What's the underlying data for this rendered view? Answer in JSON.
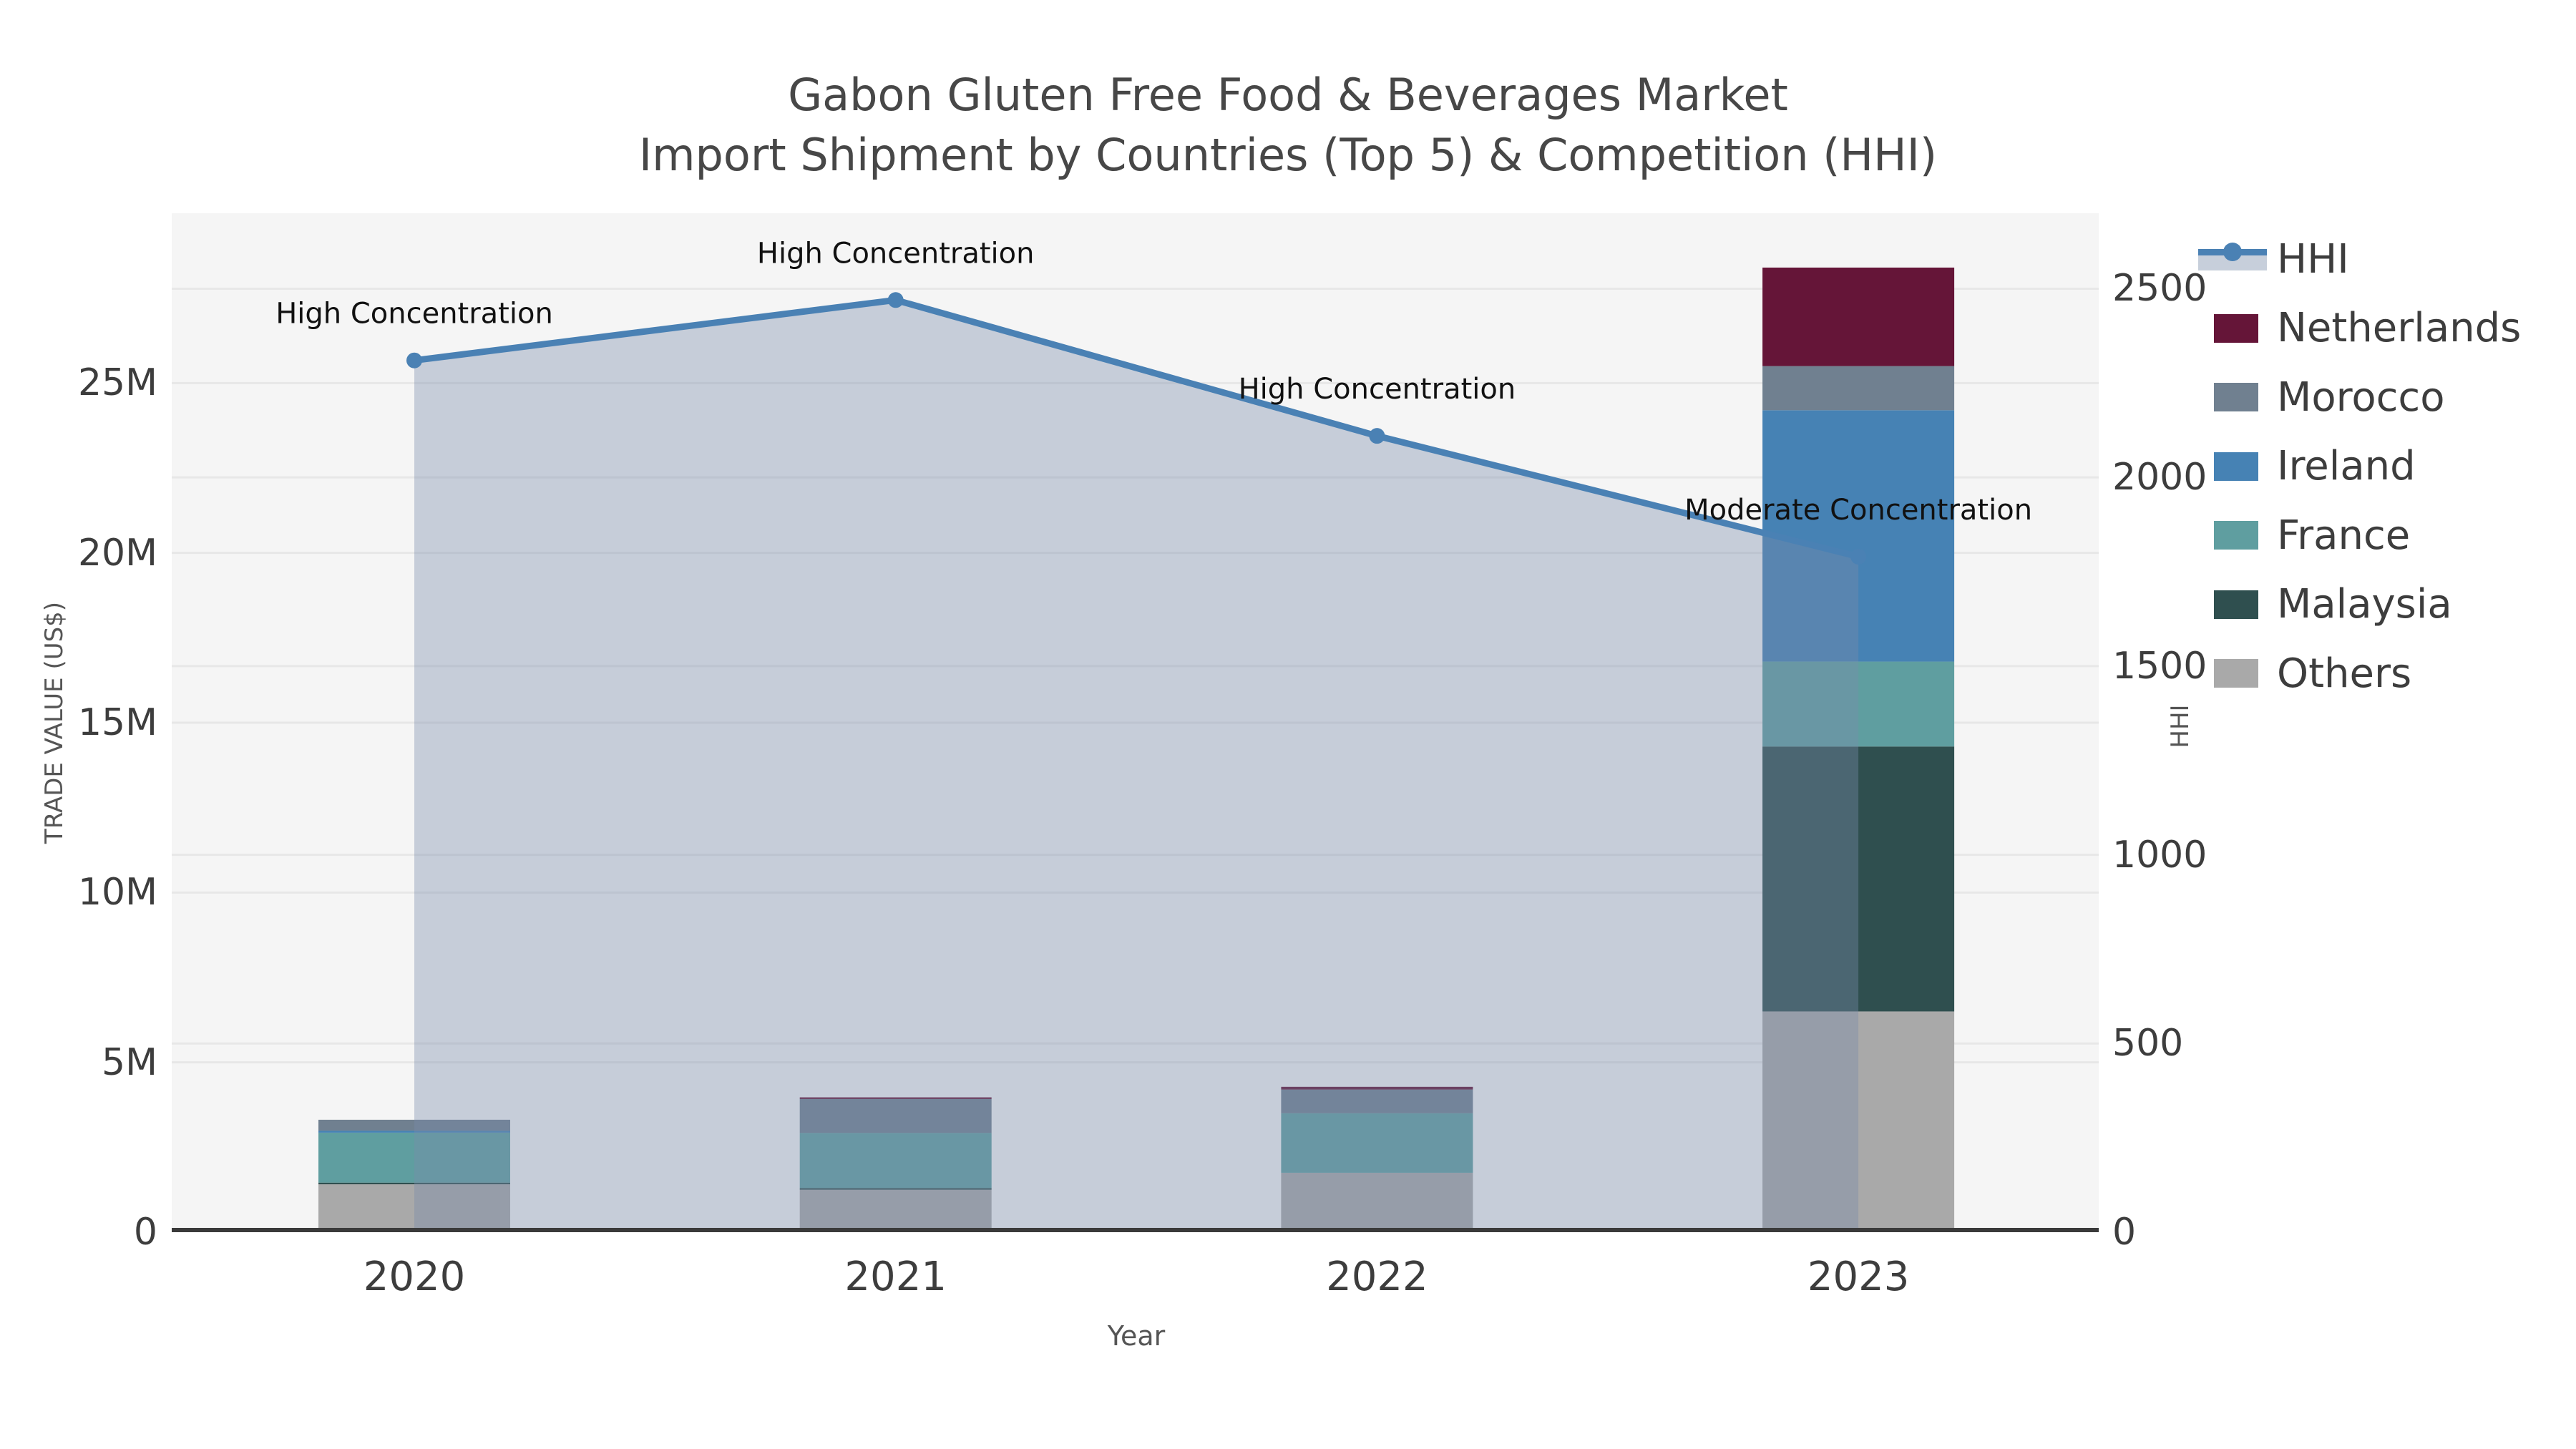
{
  "title": {
    "line1": "Gabon Gluten Free Food & Beverages Market",
    "line2": "Import Shipment by Countries (Top 5) & Competition (HHI)"
  },
  "axes": {
    "x_label": "Year",
    "y_left_label": "TRADE VALUE (US$)",
    "y_right_label": "HHI",
    "y_left_ticks": [
      {
        "label": "0",
        "value_M": 0
      },
      {
        "label": "5M",
        "value_M": 5
      },
      {
        "label": "10M",
        "value_M": 10
      },
      {
        "label": "15M",
        "value_M": 15
      },
      {
        "label": "20M",
        "value_M": 20
      },
      {
        "label": "25M",
        "value_M": 25
      }
    ],
    "y_left_max_M": 30,
    "y_right_ticks": [
      {
        "label": "0",
        "value": 0
      },
      {
        "label": "500",
        "value": 500
      },
      {
        "label": "1000",
        "value": 1000
      },
      {
        "label": "1500",
        "value": 1500
      },
      {
        "label": "2000",
        "value": 2000
      },
      {
        "label": "2500",
        "value": 2500
      }
    ],
    "y_right_max": 2700,
    "grid": true
  },
  "chart_data": {
    "type": "combo-stacked-bar-line",
    "categories": [
      "2020",
      "2021",
      "2022",
      "2023"
    ],
    "bar_unit": "million US$",
    "bar_series": [
      {
        "name": "Others",
        "color": "#a9a9a9",
        "values_M": [
          1.41,
          1.25,
          1.75,
          6.5
        ]
      },
      {
        "name": "Malaysia",
        "color": "#2F4F4F",
        "values_M": [
          0.05,
          0.05,
          0.0,
          7.8
        ]
      },
      {
        "name": "France",
        "color": "#5F9EA0",
        "values_M": [
          1.47,
          1.62,
          1.75,
          2.5
        ]
      },
      {
        "name": "Ireland",
        "color": "#4682B4",
        "values_M": [
          0.06,
          0.0,
          0.0,
          7.4
        ]
      },
      {
        "name": "Morocco",
        "color": "#708090",
        "values_M": [
          0.32,
          1.0,
          0.7,
          1.3
        ]
      },
      {
        "name": "Netherlands",
        "color": "#651538",
        "values_M": [
          0.0,
          0.05,
          0.08,
          2.9
        ]
      }
    ],
    "line_series": {
      "name": "HHI",
      "color": "#4a81b4",
      "area_color": "#7a8caa",
      "area_opacity": 0.38,
      "values": [
        2310,
        2470,
        2110,
        1790
      ]
    },
    "annotations": [
      {
        "category": "2020",
        "text": "High Concentration"
      },
      {
        "category": "2021",
        "text": "High Concentration"
      },
      {
        "category": "2022",
        "text": "High Concentration"
      },
      {
        "category": "2023",
        "text": "Moderate Concentration"
      }
    ]
  },
  "legend": {
    "items": [
      {
        "label": "HHI",
        "type": "line",
        "color": "#4a81b4",
        "band_color": "#c7cfdb"
      },
      {
        "label": "Netherlands",
        "type": "swatch",
        "color": "#651538"
      },
      {
        "label": "Morocco",
        "type": "swatch",
        "color": "#708090"
      },
      {
        "label": "Ireland",
        "type": "swatch",
        "color": "#4682B4"
      },
      {
        "label": "France",
        "type": "swatch",
        "color": "#5F9EA0"
      },
      {
        "label": "Malaysia",
        "type": "swatch",
        "color": "#2F4F4F"
      },
      {
        "label": "Others",
        "type": "swatch",
        "color": "#a9a9a9"
      }
    ]
  },
  "style": {
    "plot_bg": "#f5f5f5",
    "grid_color": "#e7e7e7",
    "spine_color": "#3a3a3a",
    "annotation_color": "#111111"
  }
}
